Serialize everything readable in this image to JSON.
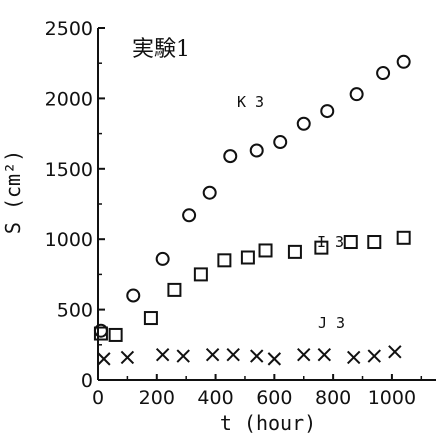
{
  "chart_data": {
    "type": "scatter",
    "title": "実験1",
    "xlabel": "t (hour)",
    "ylabel": "S (cm²)",
    "xlim": [
      0,
      1150
    ],
    "ylim": [
      0,
      2500
    ],
    "xticks": [
      0,
      200,
      400,
      600,
      800,
      1000
    ],
    "yticks": [
      0,
      500,
      1000,
      1500,
      2000,
      2500
    ],
    "x_tick_labels": [
      "0",
      "200",
      "400",
      "600",
      "800",
      "1000"
    ],
    "y_tick_labels": [
      "0",
      "500",
      "1000",
      "1500",
      "2000",
      "2500"
    ],
    "grid": false,
    "series": [
      {
        "name": "K 3",
        "marker": "circle",
        "points": [
          [
            10,
            350
          ],
          [
            120,
            600
          ],
          [
            220,
            860
          ],
          [
            310,
            1170
          ],
          [
            380,
            1330
          ],
          [
            450,
            1590
          ],
          [
            540,
            1630
          ],
          [
            620,
            1690
          ],
          [
            700,
            1820
          ],
          [
            780,
            1910
          ],
          [
            880,
            2030
          ],
          [
            970,
            2180
          ],
          [
            1040,
            2260
          ]
        ]
      },
      {
        "name": "I 3",
        "marker": "square",
        "points": [
          [
            10,
            330
          ],
          [
            60,
            320
          ],
          [
            180,
            440
          ],
          [
            260,
            640
          ],
          [
            350,
            750
          ],
          [
            430,
            850
          ],
          [
            510,
            870
          ],
          [
            570,
            920
          ],
          [
            670,
            910
          ],
          [
            760,
            940
          ],
          [
            860,
            980
          ],
          [
            940,
            980
          ],
          [
            1040,
            1010
          ]
        ]
      },
      {
        "name": "J 3",
        "marker": "x",
        "points": [
          [
            20,
            150
          ],
          [
            100,
            160
          ],
          [
            220,
            180
          ],
          [
            290,
            170
          ],
          [
            390,
            180
          ],
          [
            460,
            180
          ],
          [
            540,
            170
          ],
          [
            600,
            150
          ],
          [
            700,
            180
          ],
          [
            770,
            180
          ],
          [
            870,
            160
          ],
          [
            940,
            170
          ],
          [
            1010,
            200
          ]
        ]
      }
    ]
  }
}
